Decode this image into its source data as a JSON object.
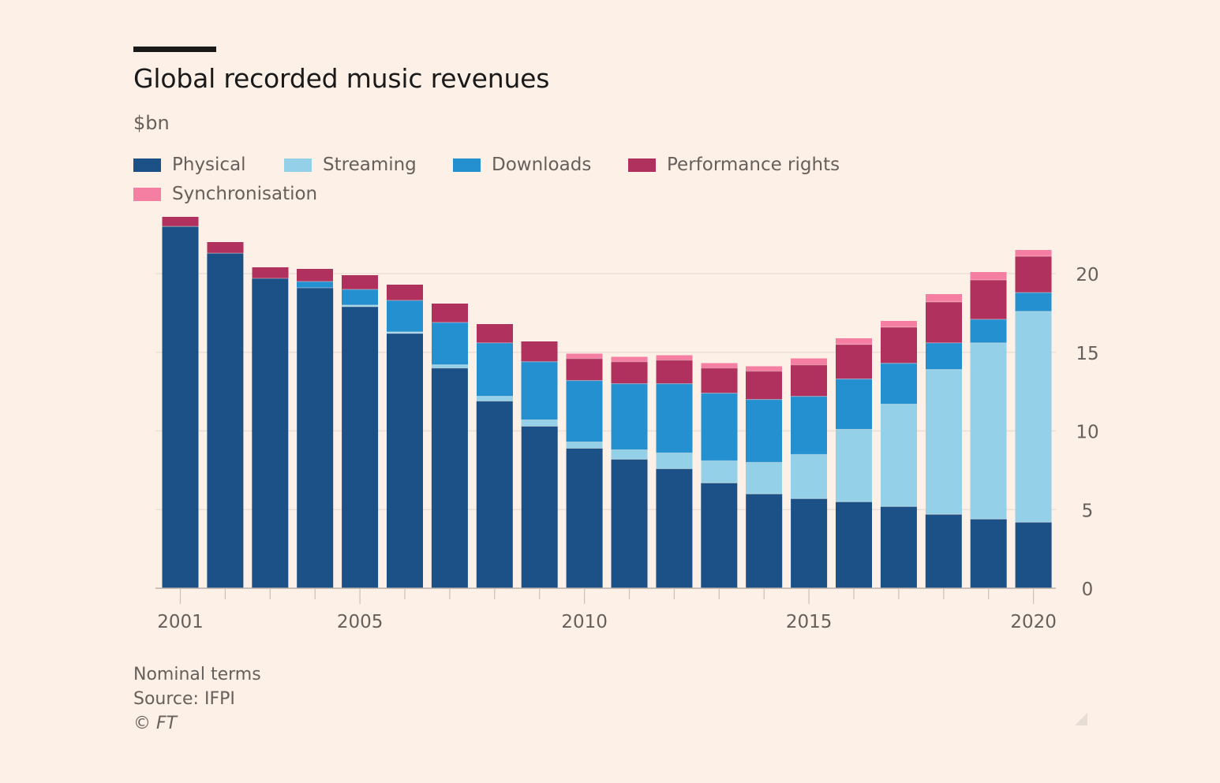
{
  "chart_data": {
    "type": "bar",
    "stacked": true,
    "title": "Global recorded music revenues",
    "subtitle": "$bn",
    "x": [
      2001,
      2002,
      2003,
      2004,
      2005,
      2006,
      2007,
      2008,
      2009,
      2010,
      2011,
      2012,
      2013,
      2014,
      2015,
      2016,
      2017,
      2018,
      2019,
      2020
    ],
    "x_tick_labels": [
      "2001",
      "2005",
      "2010",
      "2015",
      "2020"
    ],
    "series": [
      {
        "name": "Physical",
        "color": "#1c5188",
        "values": [
          23.0,
          21.3,
          19.7,
          19.1,
          17.9,
          16.2,
          14.0,
          11.9,
          10.3,
          8.9,
          8.2,
          7.6,
          6.7,
          6.0,
          5.7,
          5.5,
          5.2,
          4.7,
          4.4,
          4.2
        ]
      },
      {
        "name": "Streaming",
        "color": "#94d0e8",
        "values": [
          0.0,
          0.0,
          0.0,
          0.0,
          0.1,
          0.1,
          0.2,
          0.3,
          0.4,
          0.4,
          0.6,
          1.0,
          1.4,
          2.0,
          2.8,
          4.6,
          6.5,
          9.2,
          11.2,
          13.4
        ]
      },
      {
        "name": "Downloads",
        "color": "#2590d0",
        "values": [
          0.0,
          0.0,
          0.0,
          0.4,
          1.0,
          2.0,
          2.7,
          3.4,
          3.7,
          3.9,
          4.2,
          4.4,
          4.3,
          4.0,
          3.7,
          3.2,
          2.6,
          1.7,
          1.5,
          1.2
        ]
      },
      {
        "name": "Performance rights",
        "color": "#b0305e",
        "values": [
          0.6,
          0.7,
          0.7,
          0.8,
          0.9,
          1.0,
          1.2,
          1.2,
          1.3,
          1.4,
          1.4,
          1.5,
          1.6,
          1.8,
          2.0,
          2.2,
          2.3,
          2.6,
          2.5,
          2.3
        ]
      },
      {
        "name": "Synchronisation",
        "color": "#f57ea3",
        "values": [
          0.0,
          0.0,
          0.0,
          0.0,
          0.0,
          0.0,
          0.0,
          0.0,
          0.0,
          0.3,
          0.3,
          0.3,
          0.3,
          0.3,
          0.4,
          0.4,
          0.4,
          0.5,
          0.5,
          0.4
        ]
      }
    ],
    "ylim": [
      0,
      23.6
    ],
    "y_ticks": [
      0,
      5,
      10,
      15,
      20
    ],
    "y_axis_side": "right",
    "grid": true,
    "legend_position": "top-left"
  },
  "footer": {
    "note": "Nominal terms",
    "source": "Source: IFPI",
    "copyright": "© FT"
  }
}
